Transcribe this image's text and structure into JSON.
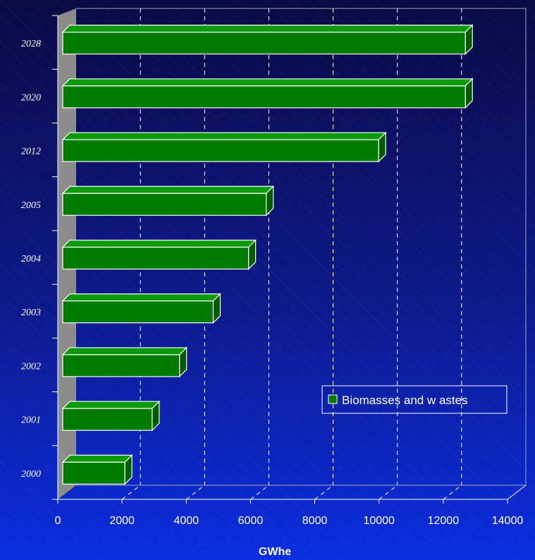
{
  "chart_data": {
    "type": "bar",
    "orientation": "horizontal",
    "three_d": true,
    "categories": [
      "2000",
      "2001",
      "2002",
      "2003",
      "2004",
      "2005",
      "2012",
      "2020",
      "2028"
    ],
    "series": [
      {
        "name": "Biomasses and w astes",
        "values": [
          2000,
          2850,
          3700,
          4750,
          5850,
          6400,
          9900,
          12600,
          12600
        ],
        "color": "#007a00"
      }
    ],
    "xlabel": "GWhe",
    "ylabel": "",
    "xlim": [
      0,
      14000
    ],
    "xticks": [
      "0",
      "2000",
      "4000",
      "6000",
      "8000",
      "10000",
      "12000",
      "14000"
    ],
    "grid": "vertical-dashed",
    "legend_position": "bottom-right"
  },
  "colors": {
    "background_top": "#0a0a44",
    "background_bottom": "#0a2ee0",
    "side_wall": "#8c8c8c",
    "grid": "#ffffff",
    "bar": "#007a00",
    "bar_edge": "#ffffff"
  }
}
